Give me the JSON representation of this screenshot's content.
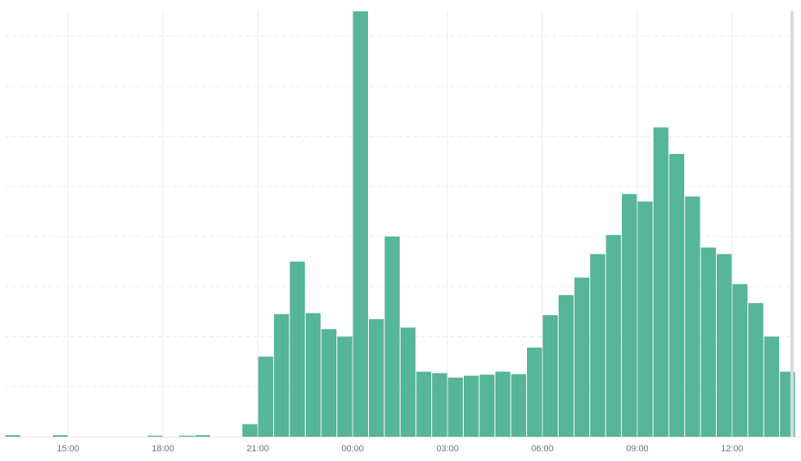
{
  "colors": {
    "bar": "#57b598",
    "grid_horizontal": "#ebebeb",
    "grid_vertical": "#e8e8ea",
    "axis": "#e3e4e8",
    "right_edge": "#d8d9df",
    "tick_text": "#6b6f80"
  },
  "chart_data": {
    "type": "bar",
    "title": "",
    "xlabel": "",
    "ylabel": "",
    "bin_minutes": 30,
    "y_tick_labels_shown": false,
    "ylim": [
      0,
      85
    ],
    "horizontal_grid_step": 10,
    "xlim": [
      "13:00",
      "14:20"
    ],
    "x_ticks": [
      "15:00",
      "18:00",
      "21:00",
      "00:00",
      "03:00",
      "06:00",
      "09:00",
      "12:00"
    ],
    "grid": {
      "horizontal": true,
      "horizontal_style": "dashed",
      "vertical": true
    },
    "series": [
      {
        "values": [
          0.3,
          0,
          0,
          0.3,
          0,
          0,
          0,
          0,
          0,
          0.2,
          0,
          0.2,
          0.3,
          0,
          0,
          2.5,
          16,
          24.5,
          35,
          24.7,
          21.5,
          20,
          85,
          23.5,
          40,
          21.8,
          13,
          12.7,
          11.8,
          12.2,
          12.4,
          13,
          12.5,
          17.8,
          24.3,
          28.3,
          31.8,
          36.5,
          40.3,
          48.5,
          47,
          61.8,
          56.5,
          48,
          37.8,
          36.5,
          30.5,
          26.7,
          20,
          13
        ]
      }
    ]
  }
}
